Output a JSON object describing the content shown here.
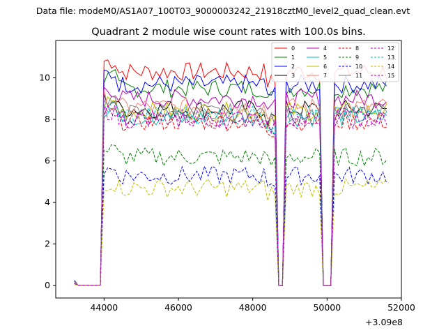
{
  "figure": {
    "suptitle": "Data file: modeM0/AS1A07_100T03_9000003242_21918cztM0_level2_quad_clean.evt",
    "title": "Quadrant 2 module wise count rates with 100.0s bins."
  },
  "chart_data": {
    "type": "line",
    "title": "Quadrant 2 module wise count rates with 100.0s bins.",
    "xlabel": "",
    "ylabel": "",
    "x_offset_label": "+3.09e8",
    "xlim": [
      42700,
      52000
    ],
    "ylim": [
      -0.6,
      11.8
    ],
    "xticks": [
      44000,
      46000,
      48000,
      50000,
      52000
    ],
    "xtick_labels": [
      "44000",
      "46000",
      "48000",
      "50000",
      "52000"
    ],
    "yticks": [
      0,
      2,
      4,
      6,
      8,
      10
    ],
    "ytick_labels": [
      "0",
      "2",
      "4",
      "6",
      "8",
      "10"
    ],
    "grid": false,
    "legend_position": "upper-right",
    "gap_intervals": [
      [
        48650,
        48900
      ],
      [
        49850,
        50200
      ]
    ],
    "segments": [
      [
        43200,
        43900
      ],
      [
        44100,
        48500
      ],
      [
        48950,
        49700
      ],
      [
        50250,
        51600
      ]
    ],
    "series": [
      {
        "name": "0",
        "color": "#ff0000",
        "dash": "solid",
        "level": 10.3,
        "low": 0.2
      },
      {
        "name": "1",
        "color": "#008000",
        "dash": "solid",
        "level": 9.5,
        "low": 0.2
      },
      {
        "name": "2",
        "color": "#0000ff",
        "dash": "solid",
        "level": 9.7,
        "low": 0.25
      },
      {
        "name": "3",
        "color": "#000000",
        "dash": "solid",
        "level": 8.5,
        "low": 0.15
      },
      {
        "name": "4",
        "color": "#bf00bf",
        "dash": "solid",
        "level": 9.0,
        "low": 0.2
      },
      {
        "name": "5",
        "color": "#00bfbf",
        "dash": "solid",
        "level": 8.1,
        "low": 0.15
      },
      {
        "name": "6",
        "color": "#bfbf00",
        "dash": "solid",
        "level": 8.4,
        "low": 0.15
      },
      {
        "name": "7",
        "color": "#fa8072",
        "dash": "solid",
        "level": 8.6,
        "low": 0.2
      },
      {
        "name": "8",
        "color": "#ff0000",
        "dash": "dashed",
        "level": 7.9,
        "low": 0.1
      },
      {
        "name": "9",
        "color": "#008000",
        "dash": "dashed",
        "level": 6.2,
        "low": 0.1
      },
      {
        "name": "10",
        "color": "#0000ff",
        "dash": "dashed",
        "level": 5.3,
        "low": 0.1
      },
      {
        "name": "11",
        "color": "#808080",
        "dash": "solid",
        "level": 8.3,
        "low": 0.2
      },
      {
        "name": "12",
        "color": "#bf00bf",
        "dash": "dashed",
        "level": 8.0,
        "low": 0.1
      },
      {
        "name": "13",
        "color": "#00bfbf",
        "dash": "dashed",
        "level": 8.2,
        "low": 0.1
      },
      {
        "name": "14",
        "color": "#bfbf00",
        "dash": "dashed",
        "level": 4.7,
        "low": 0.05
      },
      {
        "name": "15",
        "color": "#bf00bf",
        "dash": "dashed",
        "level": 8.1,
        "low": 0.1
      }
    ]
  }
}
